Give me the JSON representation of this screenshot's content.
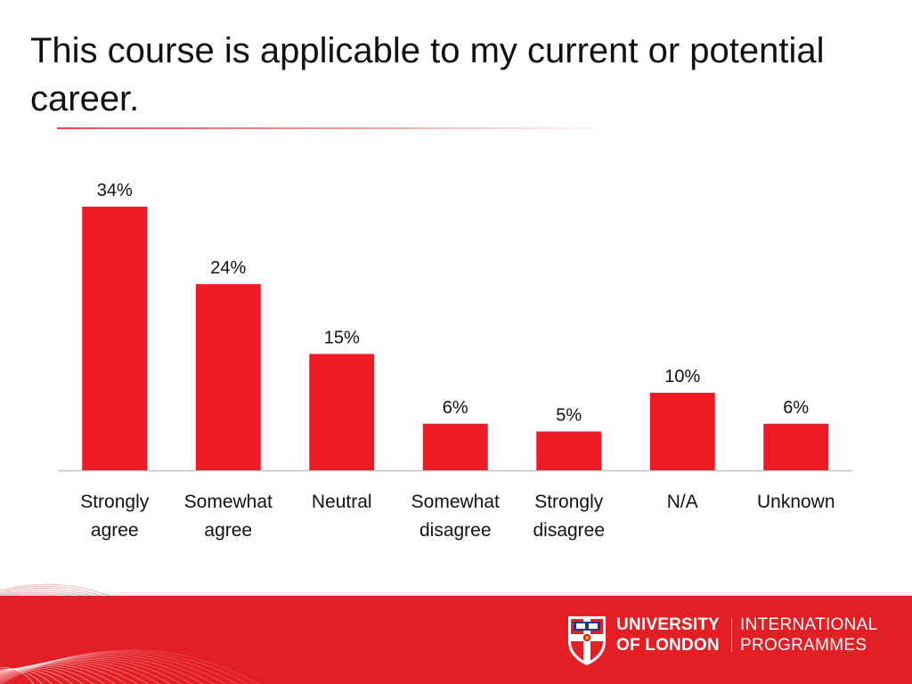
{
  "slide": {
    "title": "This course is applicable to my current or potential career."
  },
  "chart_data": {
    "type": "bar",
    "title": "This course is applicable to my current or potential career.",
    "categories": [
      [
        "Strongly",
        "agree"
      ],
      [
        "Somewhat",
        "agree"
      ],
      [
        "Neutral"
      ],
      [
        "Somewhat",
        "disagree"
      ],
      [
        "Strongly",
        "disagree"
      ],
      [
        "N/A"
      ],
      [
        "Unknown"
      ]
    ],
    "values": [
      34,
      24,
      15,
      6,
      5,
      10,
      6
    ],
    "value_labels": [
      "34%",
      "24%",
      "15%",
      "6%",
      "5%",
      "10%",
      "6%"
    ],
    "unit": "%",
    "ylim": [
      0,
      34
    ],
    "xlabel": "",
    "ylabel": "",
    "grid": false,
    "legend": "none",
    "bar_color": "#ed1c24"
  },
  "footer": {
    "university_line1": "UNIVERSITY",
    "university_line2": "OF LONDON",
    "programme_line1": "INTERNATIONAL",
    "programme_line2": "PROGRAMMES",
    "band_color": "#e31e24"
  }
}
